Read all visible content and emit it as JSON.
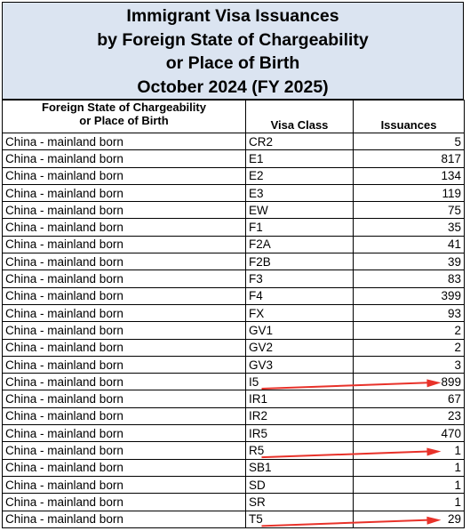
{
  "title": {
    "lines": [
      "Immigrant Visa Issuances",
      "by Foreign State of Chargeability",
      "or Place of Birth",
      "October 2024 (FY 2025)"
    ]
  },
  "table": {
    "headers": {
      "state_line1": "Foreign State of Chargeability",
      "state_line2": "or Place of Birth",
      "visa_class": "Visa Class",
      "issuances": "Issuances"
    },
    "rows": [
      {
        "state": "China - mainland born",
        "visa_class": "CR2",
        "issuances": "5"
      },
      {
        "state": "China - mainland born",
        "visa_class": "E1",
        "issuances": "817"
      },
      {
        "state": "China - mainland born",
        "visa_class": "E2",
        "issuances": "134"
      },
      {
        "state": "China - mainland born",
        "visa_class": "E3",
        "issuances": "119"
      },
      {
        "state": "China - mainland born",
        "visa_class": "EW",
        "issuances": "75"
      },
      {
        "state": "China - mainland born",
        "visa_class": "F1",
        "issuances": "35"
      },
      {
        "state": "China - mainland born",
        "visa_class": "F2A",
        "issuances": "41"
      },
      {
        "state": "China - mainland born",
        "visa_class": "F2B",
        "issuances": "39"
      },
      {
        "state": "China - mainland born",
        "visa_class": "F3",
        "issuances": "83"
      },
      {
        "state": "China - mainland born",
        "visa_class": "F4",
        "issuances": "399"
      },
      {
        "state": "China - mainland born",
        "visa_class": "FX",
        "issuances": "93"
      },
      {
        "state": "China - mainland born",
        "visa_class": "GV1",
        "issuances": "2"
      },
      {
        "state": "China - mainland born",
        "visa_class": "GV2",
        "issuances": "2"
      },
      {
        "state": "China - mainland born",
        "visa_class": "GV3",
        "issuances": "3"
      },
      {
        "state": "China - mainland born",
        "visa_class": "I5",
        "issuances": "899"
      },
      {
        "state": "China - mainland born",
        "visa_class": "IR1",
        "issuances": "67"
      },
      {
        "state": "China - mainland born",
        "visa_class": "IR2",
        "issuances": "23"
      },
      {
        "state": "China - mainland born",
        "visa_class": "IR5",
        "issuances": "470"
      },
      {
        "state": "China - mainland born",
        "visa_class": "R5",
        "issuances": "1"
      },
      {
        "state": "China - mainland born",
        "visa_class": "SB1",
        "issuances": "1"
      },
      {
        "state": "China - mainland born",
        "visa_class": "SD",
        "issuances": "1"
      },
      {
        "state": "China - mainland born",
        "visa_class": "SR",
        "issuances": "1"
      },
      {
        "state": "China - mainland born",
        "visa_class": "T5",
        "issuances": "29"
      }
    ]
  },
  "annotations": {
    "arrow_color": "#e8322a",
    "highlighted_classes": [
      "I5",
      "R5",
      "T5"
    ]
  },
  "colors": {
    "title_background": "#dbe4f1",
    "border": "#000000"
  }
}
